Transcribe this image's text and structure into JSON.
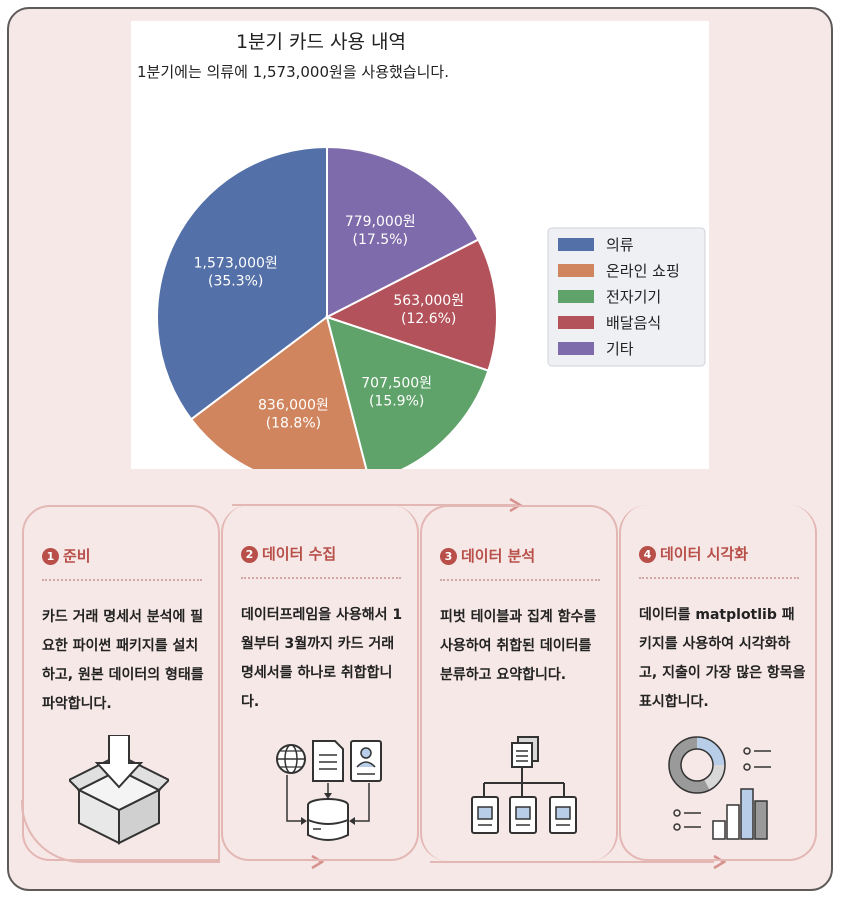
{
  "chart_data": {
    "type": "pie",
    "title": "1분기 카드 사용 내역",
    "subtitle": "1분기에는 의류에 1,573,000원을 사용했습니다.",
    "categories": [
      "의류",
      "온라인 쇼핑",
      "전자기기",
      "배달음식",
      "기타"
    ],
    "values": [
      1573000,
      836000,
      707500,
      563000,
      779000
    ],
    "value_labels": [
      "1,573,000원",
      "836,000원",
      "707,500원",
      "563,000원",
      "779,000원"
    ],
    "percent_labels": [
      "(35.3%)",
      "(18.8%)",
      "(15.9%)",
      "(12.6%)",
      "(17.5%)"
    ],
    "colors": [
      "#5470a8",
      "#d0855e",
      "#5fa36a",
      "#b3525a",
      "#7e6bab"
    ],
    "legend_position": "right",
    "start_angle": "top, counterclockwise"
  },
  "steps": [
    {
      "number": "1",
      "title": "준비",
      "description": "카드 거래 명세서 분석에 필요한 파이썬 패키지를 설치하고, 원본 데이터의 형태를 파악합니다.",
      "icon": "open-box-download-icon"
    },
    {
      "number": "2",
      "title": "데이터 수집",
      "description": "데이터프레임을 사용해서 1월부터 3월까지 카드 거래 명세서를 하나로 취합합니다.",
      "icon": "data-merge-icon"
    },
    {
      "number": "3",
      "title": "데이터 분석",
      "description": "피벗 테이블과 집계 함수를 사용하여 취합된 데이터를 분류하고 요약합니다.",
      "icon": "hierarchy-icon"
    },
    {
      "number": "4",
      "title": "데이터 시각화",
      "description": "데이터를 matplotlib 패키지를 사용하여 시각화하고, 지출이 가장 많은 항목을 표시합니다.",
      "icon": "chart-visualization-icon"
    }
  ],
  "colors": {
    "accent": "#b84f49",
    "card_border": "#e3b7b4",
    "background": "#f6e8e6"
  }
}
